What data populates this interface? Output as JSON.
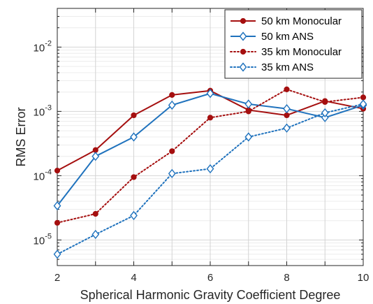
{
  "chart_data": {
    "type": "line",
    "xlabel": "Spherical Harmonic Gravity Coefficient Degree",
    "ylabel": "RMS Error",
    "xlim": [
      2,
      10
    ],
    "ylim": [
      4e-06,
      0.04
    ],
    "yscale": "log",
    "grid": true,
    "minor_grid": true,
    "legend_position": "top-right",
    "x_ticks": [
      2,
      3,
      4,
      5,
      6,
      7,
      8,
      9,
      10
    ],
    "x_tick_labels": [
      "2",
      "4",
      "6",
      "8",
      "10"
    ],
    "x_tick_label_values": [
      2,
      4,
      6,
      8,
      10
    ],
    "y_tick_values": [
      1e-05,
      0.0001,
      0.001,
      0.01
    ],
    "y_tick_labels": [
      {
        "base": "10",
        "exp": "-5"
      },
      {
        "base": "10",
        "exp": "-4"
      },
      {
        "base": "10",
        "exp": "-3"
      },
      {
        "base": "10",
        "exp": "-2"
      }
    ],
    "x": [
      2,
      3,
      4,
      5,
      6,
      7,
      8,
      9,
      10
    ],
    "series": [
      {
        "name": "50 km Monocular",
        "color": "#a50f0f",
        "line": "solid",
        "marker": "dot",
        "values": [
          0.00012,
          0.00025,
          0.00087,
          0.0018,
          0.0021,
          0.00105,
          0.00087,
          0.00145,
          0.0011
        ]
      },
      {
        "name": "50 km ANS",
        "color": "#1f72bd",
        "line": "solid",
        "marker": "diamond",
        "values": [
          3.4e-05,
          0.0002,
          0.0004,
          0.00125,
          0.0019,
          0.0013,
          0.0011,
          0.0008,
          0.00125
        ]
      },
      {
        "name": "35 km Monocular",
        "color": "#a50f0f",
        "line": "dotted",
        "marker": "dot",
        "values": [
          1.85e-05,
          2.55e-05,
          9.5e-05,
          0.00024,
          0.0008,
          0.001,
          0.0022,
          0.0014,
          0.00165
        ]
      },
      {
        "name": "35 km ANS",
        "color": "#1f72bd",
        "line": "dotted",
        "marker": "diamond",
        "values": [
          6e-06,
          1.22e-05,
          2.4e-05,
          0.000108,
          0.000128,
          0.0004,
          0.00055,
          0.00095,
          0.0013
        ]
      }
    ]
  }
}
